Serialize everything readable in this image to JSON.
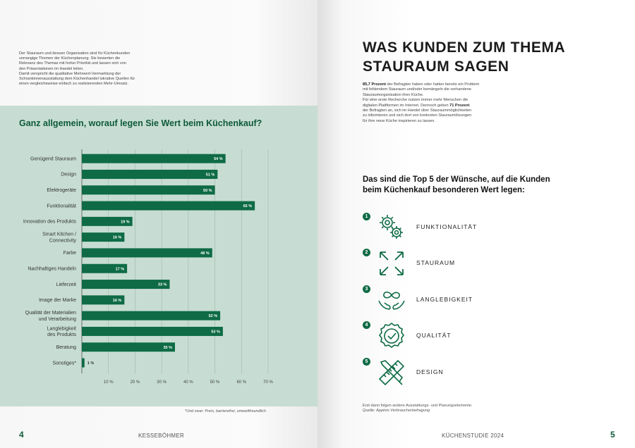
{
  "left_page": {
    "intro_lines": [
      "Der Stauraum und dessen Organisation sind für Küchenkunden",
      "vorrangige Themen der Küchenplanung. Sie bewerten die",
      "Relevanz des Themas mit hoher Priorität und lassen sich von",
      "den Präsentationen im Handel leiten.",
      "Damit verspricht die qualitative Mehrwert-Vermarktung der",
      "Schrankinnenausstattung dem Küchenhandel lukrative Quellen für",
      "einen vergleichsweise einfach zu realisierenden Mehr-Umsatz."
    ],
    "footnote": "*Und zwar: Preis, barrierefrei, umweltfreundlich",
    "page_number": "4",
    "footer": "KESSEBÖHMER"
  },
  "chart_data": {
    "type": "bar",
    "orientation": "horizontal",
    "title": "Ganz allgemein, worauf legen Sie Wert beim Küchenkauf?",
    "xlabel": "",
    "ylabel": "",
    "xlim": [
      0,
      70
    ],
    "x_ticks": [
      "10 %",
      "20 %",
      "30 %",
      "40 %",
      "50 %",
      "60 %",
      "70 %"
    ],
    "grid": true,
    "bar_color": "#0e6b45",
    "categories": [
      [
        "Genügend Stauraum"
      ],
      [
        "Design"
      ],
      [
        "Elektrogeräte"
      ],
      [
        "Funktionalität"
      ],
      [
        "Innovation des Produkts"
      ],
      [
        "Smart Kitchen /",
        "Connectivity"
      ],
      [
        "Farbe"
      ],
      [
        "Nachhaltiges Handeln"
      ],
      [
        "Lieferzeit"
      ],
      [
        "Image der Marke"
      ],
      [
        "Qualität der Materialien",
        "und Verarbeitung"
      ],
      [
        "Langlebigkeit",
        "des Produkts"
      ],
      [
        "Beratung"
      ],
      [
        "Sonstiges*"
      ]
    ],
    "values": [
      54,
      51,
      50,
      65,
      19,
      16,
      49,
      17,
      33,
      16,
      52,
      53,
      35,
      1
    ],
    "value_labels": [
      "54 %",
      "51 %",
      "50 %",
      "65 %",
      "19 %",
      "16 %",
      "49 %",
      "17 %",
      "33 %",
      "16 %",
      "52 %",
      "53 %",
      "35 %",
      "1 %"
    ]
  },
  "right_page": {
    "title_line1": "WAS KUNDEN ZUM THEMA",
    "title_line2": "STAURAUM SAGEN",
    "intro": {
      "p1_bold": "85,7 Prozent",
      "p1_rest_line1": " der Befragten haben oder hatten bereits ein Problem",
      "p1_line2": "mit fehlendem Stauraum und/oder bemängeln die vorhandene",
      "p1_line3": "Stauraumorganisation ihrer Küche.",
      "p2_line1": "Für eine erste Recherche nutzen immer mehr Menschen die",
      "p2_line2_pre": "digitalen Plattformen im Internet. Dennoch geben ",
      "p2_bold": "71 Prozent",
      "p2_line3": "der Befragten an, sich im Handel über Stauraummöglichkeiten",
      "p2_line4": "zu informieren und sich dort von konkreten Stauraumlösungen",
      "p2_line5": "für ihre neue Küche inspirieren zu lassen."
    },
    "top5_heading_line1": "Das sind die Top 5 der Wünsche, auf die Kunden",
    "top5_heading_line2": "beim Küchenkauf besonderen Wert legen:",
    "wishes": [
      {
        "num": "1",
        "label": "FUNKTIONALITÄT",
        "icon": "gears-icon"
      },
      {
        "num": "2",
        "label": "STAURAUM",
        "icon": "expand-arrows-icon"
      },
      {
        "num": "3",
        "label": "LANGLEBIGKEIT",
        "icon": "infinity-hands-icon"
      },
      {
        "num": "4",
        "label": "QUALITÄT",
        "icon": "quality-seal-icon"
      },
      {
        "num": "5",
        "label": "DESIGN",
        "icon": "pencil-ruler-icon"
      }
    ],
    "source_line1": "Erst dann folgen andere Ausstattungs- und Planungselemente.",
    "source_line2": "Quelle: Appinio Verbraucherbefragung",
    "page_number": "5",
    "footer": "KÜCHENSTUDIE 2024"
  },
  "colors": {
    "accent": "#0e6b45",
    "panel": "#c7ddd3",
    "title_green": "#0e5a3a"
  }
}
